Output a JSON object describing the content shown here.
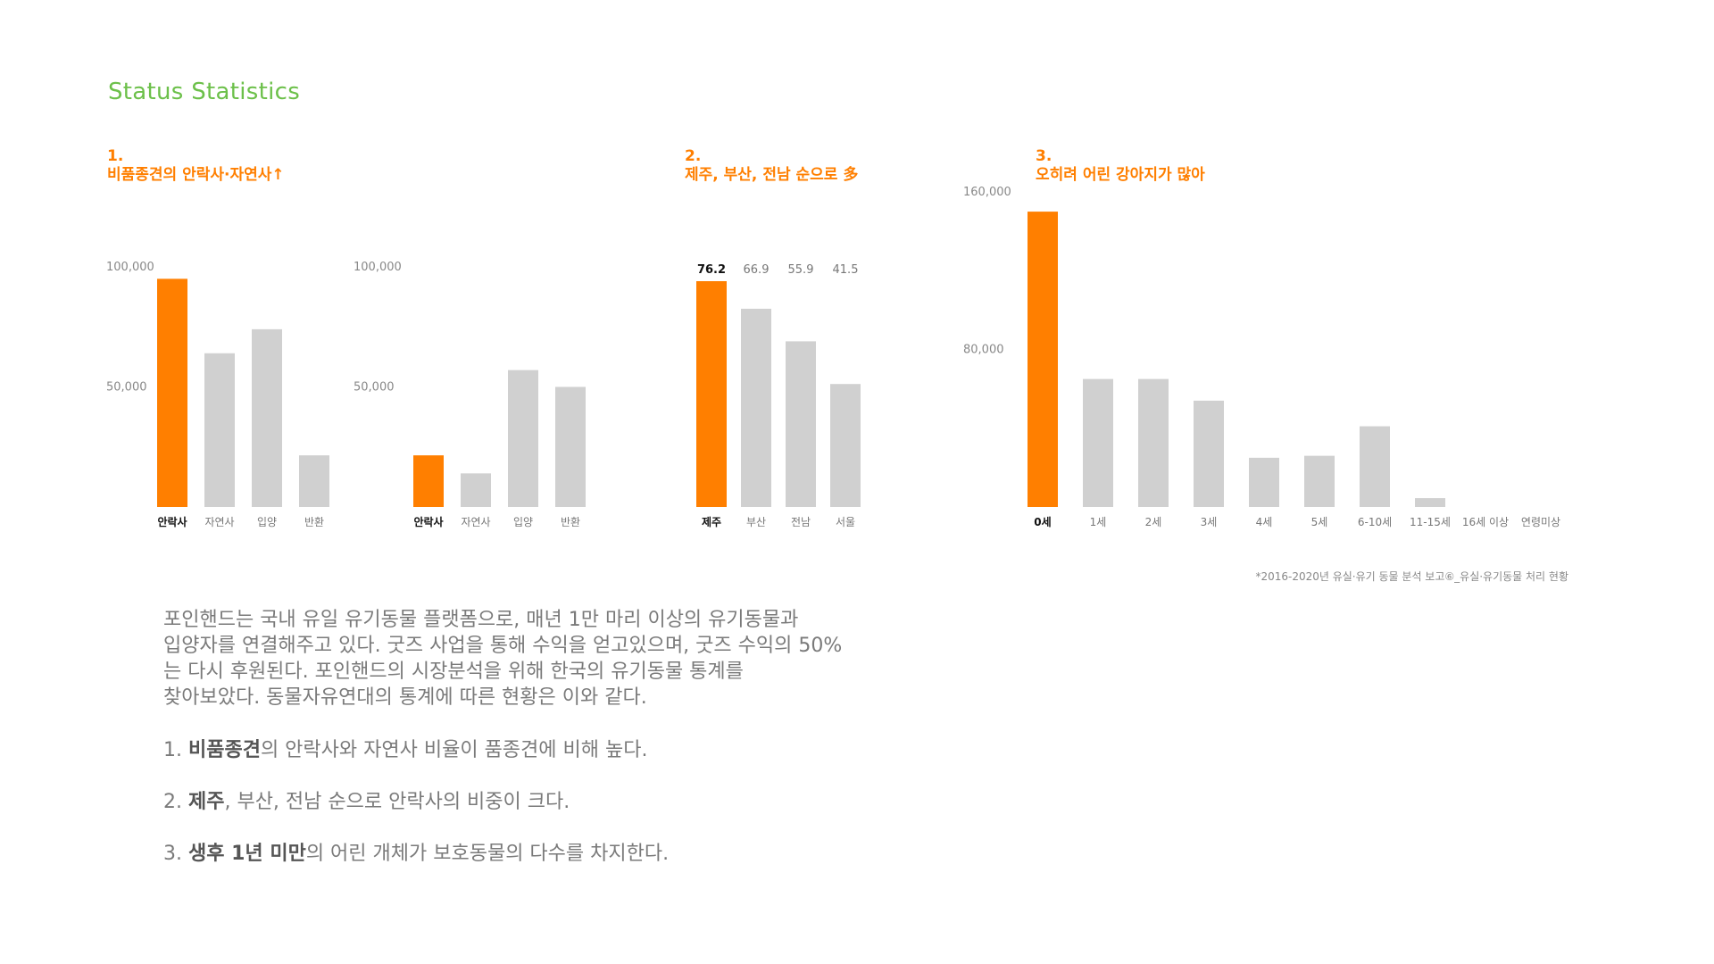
{
  "page_title": "Status Statistics",
  "sections": [
    {
      "num": "1.",
      "title": "비품종견의 안락사·자연사↑"
    },
    {
      "num": "2.",
      "title": "제주, 부산, 전남 순으로 多"
    },
    {
      "num": "3.",
      "title": "오히려 어린 강아지가 많아"
    }
  ],
  "colors": {
    "highlight": "#ff7f00",
    "bar": "#d0d0d0",
    "title_green": "#6cc04a"
  },
  "chart_data": [
    {
      "type": "bar",
      "categories": [
        "안락사",
        "자연사",
        "입양",
        "반환"
      ],
      "values": [
        95000,
        64000,
        74000,
        21500
      ],
      "highlight_index": 0,
      "yticks": [
        50000,
        100000
      ],
      "ytick_labels": [
        "50,000",
        "100,000"
      ],
      "ylim": [
        0,
        110000
      ]
    },
    {
      "type": "bar",
      "categories": [
        "안락사",
        "자연사",
        "입양",
        "반환"
      ],
      "values": [
        21500,
        14000,
        57000,
        50000
      ],
      "highlight_index": 0,
      "yticks": [
        50000,
        100000
      ],
      "ytick_labels": [
        "50,000",
        "100,000"
      ],
      "ylim": [
        0,
        110000
      ]
    },
    {
      "type": "bar",
      "categories": [
        "제주",
        "부산",
        "전남",
        "서울"
      ],
      "values": [
        76.2,
        66.9,
        55.9,
        41.5
      ],
      "value_labels": [
        "76.2",
        "66.9",
        "55.9",
        "41.5"
      ],
      "highlight_index": 0
    },
    {
      "type": "bar",
      "categories": [
        "0세",
        "1세",
        "2세",
        "3세",
        "4세",
        "5세",
        "6-10세",
        "11-15세",
        "16세 이상",
        "연령미상"
      ],
      "values": [
        150000,
        65000,
        65000,
        54000,
        25000,
        26000,
        41000,
        4500,
        0,
        0
      ],
      "highlight_index": 0,
      "yticks": [
        80000,
        160000
      ],
      "ytick_labels": [
        "80,000",
        "160,000"
      ],
      "ylim": [
        0,
        165000
      ]
    }
  ],
  "source_note": "*2016-2020년 유실·유기 동물 분석 보고⑥_유실·유기동물 처리 현황",
  "body": {
    "paragraph": [
      "포인핸드는 국내 유일 유기동물 플랫폼으로, 매년 1만 마리 이상의 유기동물과",
      "입양자를 연결해주고 있다. 굿즈 사업을 통해 수익을 얻고있으며, 굿즈 수익의 50%",
      "는 다시 후원된다. 포인핸드의 시장분석을 위해 한국의 유기동물 통계를",
      "찾아보았다. 동물자유연대의 통계에 따른 현황은 이와 같다."
    ],
    "points": [
      {
        "prefix": "1. ",
        "bold": "비품종견",
        "rest": "의 안락사와 자연사 비율이 품종견에 비해 높다."
      },
      {
        "prefix": "2. ",
        "bold": "제주",
        "rest": ", 부산, 전남 순으로 안락사의 비중이 크다."
      },
      {
        "prefix": "3. ",
        "bold": "생후 1년 미만",
        "rest": "의 어린 개체가 보호동물의 다수를 차지한다."
      }
    ]
  }
}
